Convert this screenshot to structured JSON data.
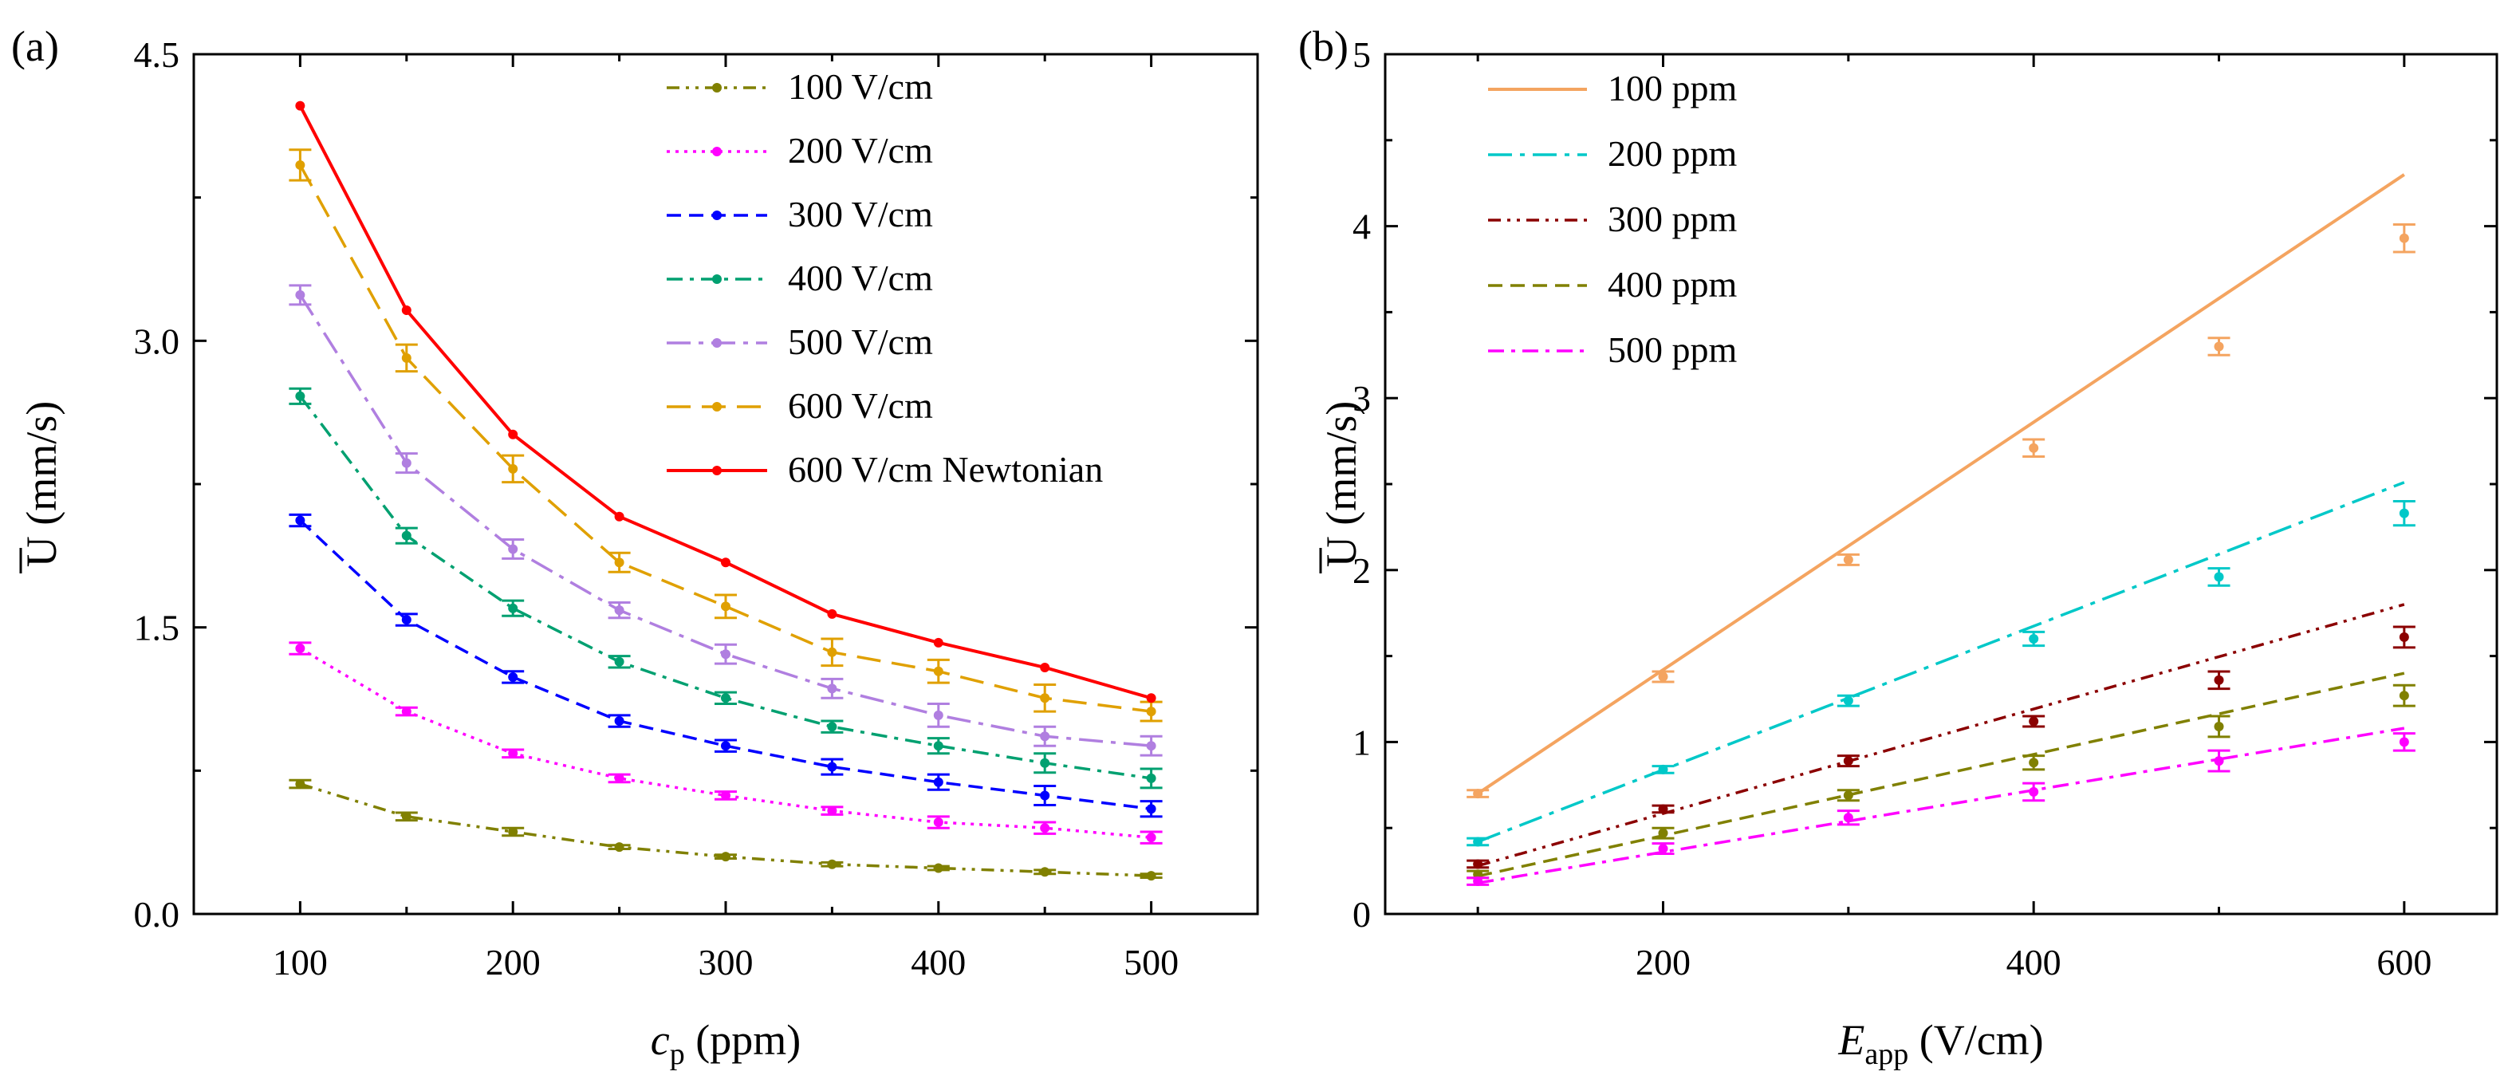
{
  "figure": {
    "colors": {
      "a": {
        "100 V/cm": "#808000",
        "200 V/cm": "#FF00FF",
        "300 V/cm": "#0000FF",
        "400 V/cm": "#00A070",
        "500 V/cm": "#B07FE0",
        "600 V/cm": "#E0A000",
        "600 V/cm Newtonian": "#FF0000"
      },
      "b": {
        "100 ppm": "#F4A460",
        "200 ppm": "#00C8C8",
        "300 ppm": "#8B0000",
        "400 ppm": "#808000",
        "500 ppm": "#FF00FF"
      }
    }
  },
  "chart_data": [
    {
      "panel_label": "(a)",
      "type": "line",
      "title": "",
      "xlabel": {
        "main": "c",
        "sub": "p",
        "rest": " (ppm)"
      },
      "ylabel": "U (mm/s)",
      "xlim": [
        50,
        550
      ],
      "ylim": [
        0,
        4.5
      ],
      "xticks": [
        100,
        200,
        300,
        400,
        500
      ],
      "yticks": [
        0.0,
        1.5,
        3.0,
        4.5
      ],
      "ytick_labels": [
        "0.0",
        "1.5",
        "3.0",
        "4.5"
      ],
      "legend_position": "top-right",
      "x": [
        100,
        150,
        200,
        250,
        300,
        350,
        400,
        450,
        500
      ],
      "series": [
        {
          "name": "100 V/cm",
          "dash": "dashdotdot",
          "errorbars": true,
          "values": [
            0.68,
            0.51,
            0.43,
            0.35,
            0.3,
            0.26,
            0.24,
            0.22,
            0.2
          ],
          "errors": [
            0.02,
            0.02,
            0.02,
            0.01,
            0.01,
            0.01,
            0.01,
            0.01,
            0.01
          ]
        },
        {
          "name": "200 V/cm",
          "dash": "dotted",
          "errorbars": true,
          "values": [
            1.39,
            1.06,
            0.84,
            0.71,
            0.62,
            0.54,
            0.48,
            0.45,
            0.4
          ],
          "errors": [
            0.03,
            0.02,
            0.02,
            0.02,
            0.02,
            0.02,
            0.03,
            0.03,
            0.03
          ]
        },
        {
          "name": "300 V/cm",
          "dash": "dashed",
          "errorbars": true,
          "values": [
            2.06,
            1.54,
            1.24,
            1.01,
            0.88,
            0.77,
            0.69,
            0.62,
            0.55
          ],
          "errors": [
            0.03,
            0.03,
            0.03,
            0.03,
            0.03,
            0.04,
            0.04,
            0.05,
            0.04
          ]
        },
        {
          "name": "400 V/cm",
          "dash": "dashdot",
          "errorbars": true,
          "values": [
            2.71,
            1.98,
            1.6,
            1.32,
            1.13,
            0.98,
            0.88,
            0.79,
            0.71
          ],
          "errors": [
            0.04,
            0.04,
            0.04,
            0.03,
            0.03,
            0.03,
            0.04,
            0.05,
            0.05
          ]
        },
        {
          "name": "500 V/cm",
          "dash": "longdashdot",
          "errorbars": true,
          "values": [
            3.24,
            2.36,
            1.91,
            1.59,
            1.36,
            1.18,
            1.04,
            0.93,
            0.88
          ],
          "errors": [
            0.05,
            0.05,
            0.05,
            0.04,
            0.05,
            0.05,
            0.06,
            0.05,
            0.05
          ]
        },
        {
          "name": "600 V/cm",
          "dash": "longdashed",
          "errorbars": true,
          "values": [
            3.92,
            2.91,
            2.33,
            1.84,
            1.61,
            1.37,
            1.27,
            1.13,
            1.06
          ],
          "errors": [
            0.08,
            0.07,
            0.07,
            0.05,
            0.06,
            0.07,
            0.06,
            0.07,
            0.05
          ]
        },
        {
          "name": "600 V/cm Newtonian",
          "dash": "solid",
          "errorbars": false,
          "values": [
            4.23,
            3.16,
            2.51,
            2.08,
            1.84,
            1.57,
            1.42,
            1.29,
            1.13
          ]
        }
      ]
    },
    {
      "panel_label": "(b)",
      "type": "line",
      "title": "",
      "xlabel": {
        "main": "E",
        "sub": "app",
        "rest": " (V/cm)"
      },
      "ylabel": "U (mm/s)",
      "xlim": [
        50,
        650
      ],
      "ylim": [
        0,
        5
      ],
      "xticks": [
        200,
        400,
        600
      ],
      "yticks": [
        0,
        1,
        2,
        3,
        4,
        5
      ],
      "ytick_labels": [
        "0",
        "1",
        "2",
        "3",
        "4",
        "5"
      ],
      "legend_position": "top-left",
      "x": [
        100,
        200,
        300,
        400,
        500,
        600
      ],
      "series": [
        {
          "name": "100 ppm",
          "dash": "solid",
          "line": [
            0.7,
            4.3
          ],
          "values": [
            0.7,
            1.38,
            2.06,
            2.71,
            3.3,
            3.93
          ],
          "errors": [
            0.02,
            0.03,
            0.03,
            0.05,
            0.05,
            0.08
          ]
        },
        {
          "name": "200 ppm",
          "dash": "longdashdot",
          "line": [
            0.42,
            2.51
          ],
          "values": [
            0.42,
            0.84,
            1.24,
            1.6,
            1.96,
            2.33
          ],
          "errors": [
            0.02,
            0.02,
            0.03,
            0.04,
            0.05,
            0.07
          ]
        },
        {
          "name": "300 ppm",
          "dash": "dashdotdot",
          "line": [
            0.28,
            1.8
          ],
          "values": [
            0.29,
            0.61,
            0.89,
            1.12,
            1.36,
            1.61
          ],
          "errors": [
            0.02,
            0.02,
            0.03,
            0.03,
            0.05,
            0.06
          ]
        },
        {
          "name": "400 ppm",
          "dash": "dashed",
          "line": [
            0.22,
            1.4
          ],
          "values": [
            0.23,
            0.47,
            0.69,
            0.88,
            1.09,
            1.27
          ],
          "errors": [
            0.02,
            0.03,
            0.03,
            0.04,
            0.06,
            0.06
          ]
        },
        {
          "name": "500 ppm",
          "dash": "dashdot",
          "line": [
            0.18,
            1.08
          ],
          "values": [
            0.19,
            0.38,
            0.56,
            0.71,
            0.89,
            1.0
          ],
          "errors": [
            0.02,
            0.03,
            0.04,
            0.05,
            0.06,
            0.05
          ]
        }
      ]
    }
  ]
}
